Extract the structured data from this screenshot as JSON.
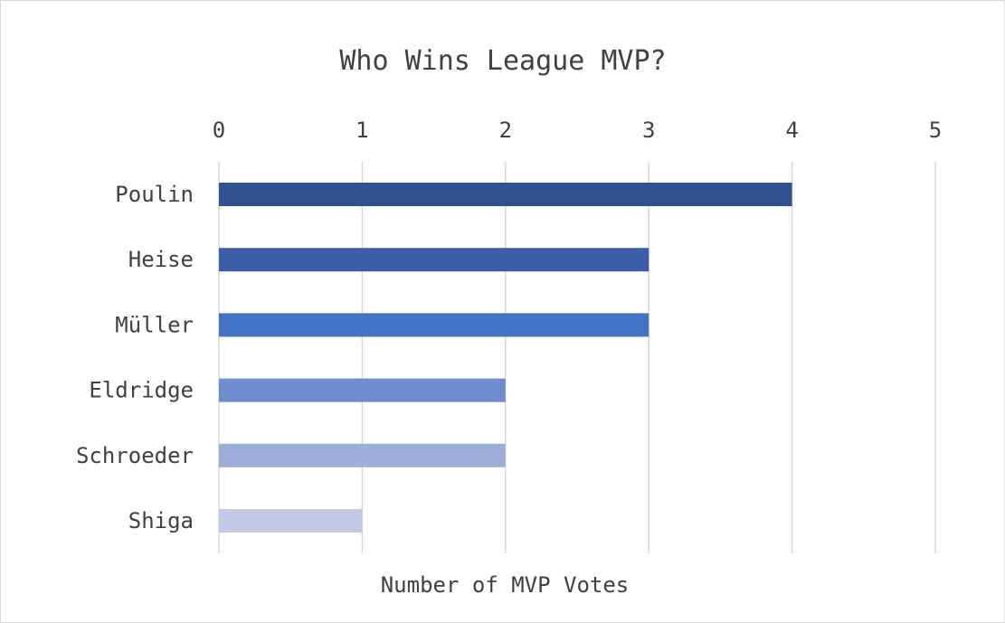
{
  "chart_data": {
    "type": "bar",
    "orientation": "horizontal",
    "title": "Who Wins League MVP?",
    "xlabel": "Number of MVP Votes",
    "ylabel": "",
    "xlim": [
      0,
      5
    ],
    "x_ticks": [
      0,
      1,
      2,
      3,
      4,
      5
    ],
    "x_axis_position": "top",
    "grid": true,
    "legend": "none",
    "categories": [
      "Poulin",
      "Heise",
      "Müller",
      "Eldridge",
      "Schroeder",
      "Shiga"
    ],
    "values": [
      4,
      3,
      3,
      2,
      2,
      1
    ],
    "colors": [
      "#2f528f",
      "#3a5fa8",
      "#4472c4",
      "#6f8ccf",
      "#9daed9",
      "#c0cae6"
    ]
  }
}
